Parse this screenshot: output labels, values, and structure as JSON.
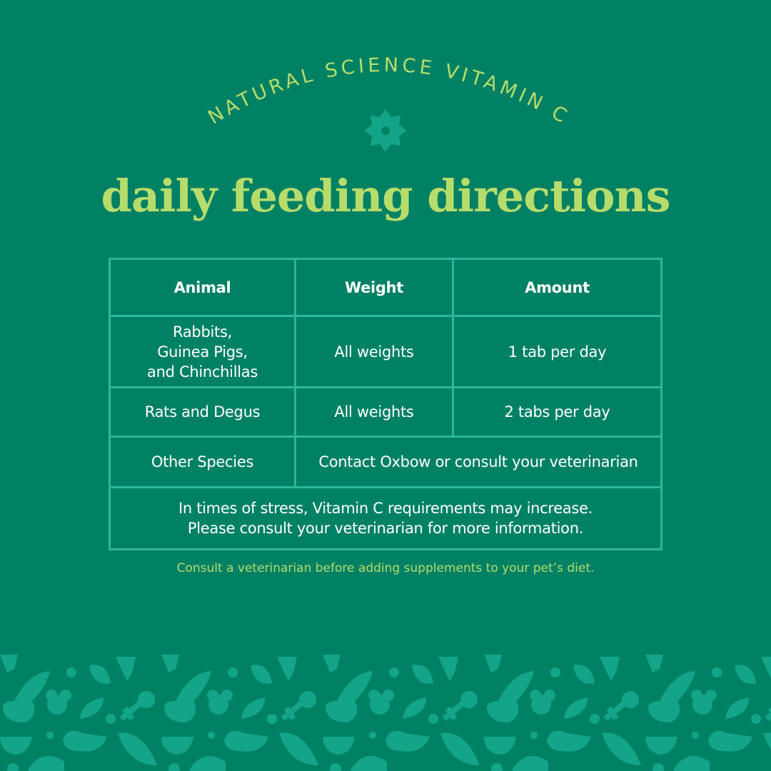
{
  "header": {
    "arc_title": "NATURAL SCIENCE VITAMIN C",
    "title": "daily feeding directions"
  },
  "table": {
    "headers": [
      "Animal",
      "Weight",
      "Amount"
    ],
    "rows": [
      {
        "animal": [
          "Rabbits,",
          "Guinea Pigs,",
          "and Chinchillas"
        ],
        "weight": "All weights",
        "amount": "1 tab per day"
      },
      {
        "animal": "Rats and Degus",
        "weight": "All weights",
        "amount": "2 tabs per day"
      },
      {
        "animal": "Other Species",
        "weight_amount": "Contact Oxbow or consult your veterinarian"
      }
    ],
    "footer": [
      "In times of stress, Vitamin C requirements may increase.",
      "Please consult your veterinarian for more information."
    ]
  },
  "note": "Consult a veterinarian before adding supplements to your pet’s diet.",
  "colors": {
    "background": "#008163",
    "accent": "#b6dc6c",
    "border": "#2db69a",
    "pattern": "#14a48a"
  },
  "icons": [
    "flower-icon",
    "animal-pattern-icon"
  ]
}
